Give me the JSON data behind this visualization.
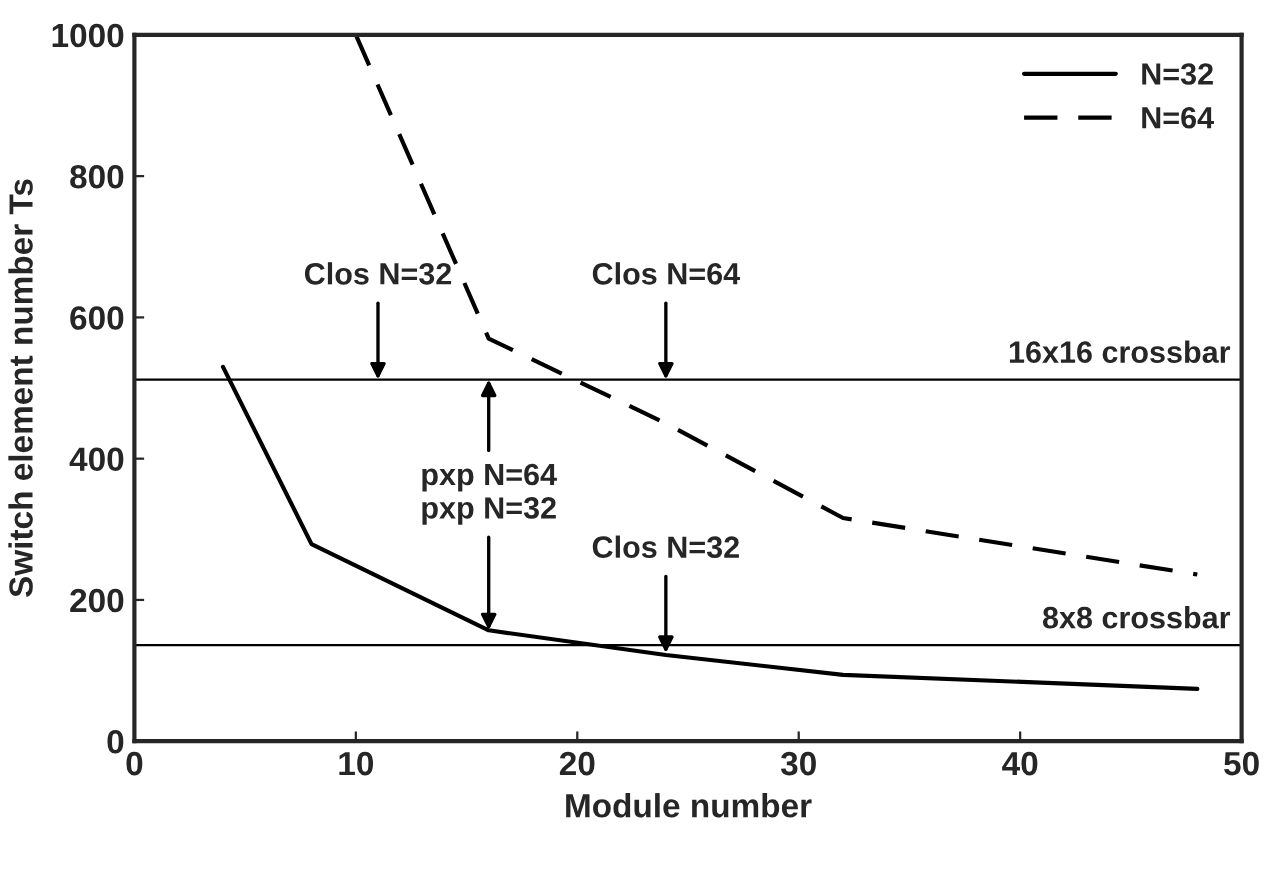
{
  "chart_data": {
    "type": "line",
    "xlabel": "Module number",
    "ylabel": "Switch element number Ts",
    "xlim": [
      0,
      50
    ],
    "xticks": [
      0,
      10,
      20,
      30,
      40,
      50
    ],
    "ylim": [
      0,
      1000
    ],
    "yticks": [
      0,
      200,
      400,
      600,
      800,
      1000
    ],
    "grid": false,
    "legend": "top right",
    "marker": "none",
    "series": [
      {
        "name": "N=32",
        "color": "#000000",
        "line_style": "solid",
        "x": [
          4,
          8,
          16,
          24,
          32,
          48
        ],
        "values": [
          530,
          279,
          157,
          122,
          94,
          74
        ]
      },
      {
        "name": "N=64",
        "color": "#000000",
        "line_style": "dashed",
        "x": [
          10,
          16,
          24,
          32,
          48
        ],
        "values": [
          1000,
          570,
          450,
          316,
          236
        ]
      }
    ],
    "ref_lines": [
      {
        "axis": "y",
        "value": 512,
        "label": "16x16 crossbar",
        "color": "#000000"
      },
      {
        "axis": "y",
        "value": 136,
        "label": "8x8 crossbar",
        "color": "#000000"
      }
    ],
    "annotations": [
      {
        "text": "Clos N=32",
        "x": 11,
        "y": 512
      },
      {
        "text": "pxp N=64",
        "x": 16,
        "y": 512
      },
      {
        "text": "Clos N=64",
        "x": 24,
        "y": 512
      },
      {
        "text": "pxp N=32",
        "x": 16,
        "y": 157
      },
      {
        "text": "Clos N=32",
        "x": 24,
        "y": 125
      }
    ]
  }
}
